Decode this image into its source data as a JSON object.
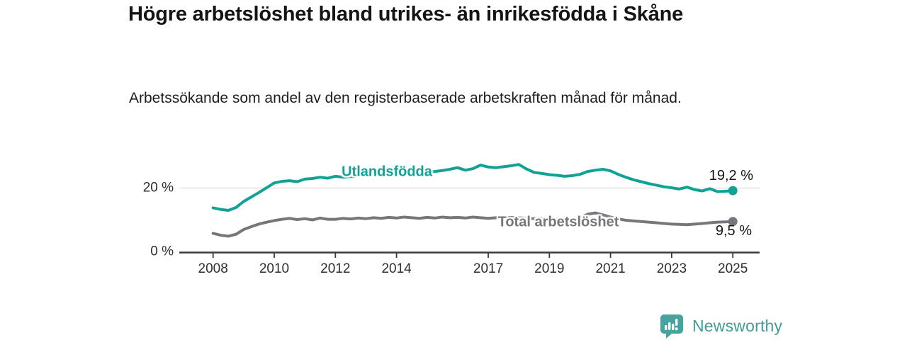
{
  "header": {
    "title": "Högre arbetslöshet bland utrikes- än inrikesfödda i Skåne",
    "subtitle": "Arbetssökande som andel av den registerbaserade arbetskraften månad för månad."
  },
  "chart_data": {
    "type": "line",
    "title": "Högre arbetslöshet bland utrikes- än inrikesfödda i Skåne",
    "xlabel": "",
    "ylabel": "Arbetssökande som andel av den registerbaserade arbetskraften (%)",
    "xlim": [
      2008,
      2025
    ],
    "ylim": [
      0,
      30
    ],
    "grid": "single horizontal gridline at 20 %",
    "legend_position": "inline labels on lines",
    "x_ticks": [
      2008,
      2010,
      2012,
      2014,
      2017,
      2019,
      2021,
      2023,
      2025
    ],
    "y_ticks": [
      {
        "value": 20,
        "label": "20 %"
      },
      {
        "value": 0,
        "label": "0 %"
      }
    ],
    "axis_color": "#3c3c3c",
    "gridline_color": "#e4e4e4",
    "x": [
      2008,
      2008.25,
      2008.5,
      2008.75,
      2009,
      2009.25,
      2009.5,
      2009.75,
      2010,
      2010.25,
      2010.5,
      2010.75,
      2011,
      2011.25,
      2011.5,
      2011.75,
      2012,
      2012.25,
      2012.5,
      2012.75,
      2013,
      2013.25,
      2013.5,
      2013.75,
      2014,
      2014.25,
      2014.5,
      2014.75,
      2015,
      2015.25,
      2015.5,
      2015.75,
      2016,
      2016.25,
      2016.5,
      2016.75,
      2017,
      2017.25,
      2017.5,
      2017.75,
      2018,
      2018.25,
      2018.5,
      2018.75,
      2019,
      2019.25,
      2019.5,
      2019.75,
      2020,
      2020.25,
      2020.5,
      2020.75,
      2021,
      2021.25,
      2021.5,
      2021.75,
      2022,
      2022.25,
      2022.5,
      2022.75,
      2023,
      2023.25,
      2023.5,
      2023.75,
      2024,
      2024.25,
      2024.5,
      2024.75,
      2025
    ],
    "series": [
      {
        "name": "Utlandsfödda",
        "color": "#10a294",
        "end_label": "19,2 %",
        "end_value": 19.2,
        "values": [
          13.8,
          13.3,
          13.0,
          13.9,
          15.8,
          17.2,
          18.6,
          20.1,
          21.6,
          22.1,
          22.3,
          22.0,
          22.8,
          23.0,
          23.4,
          23.1,
          23.7,
          23.4,
          23.6,
          23.8,
          24.0,
          24.2,
          24.1,
          24.3,
          24.5,
          24.7,
          24.6,
          24.9,
          25.1,
          25.2,
          25.5,
          25.9,
          26.4,
          25.6,
          26.1,
          27.2,
          26.6,
          26.4,
          26.7,
          27.0,
          27.4,
          26.0,
          24.9,
          24.6,
          24.2,
          24.0,
          23.7,
          23.9,
          24.3,
          25.2,
          25.6,
          25.9,
          25.4,
          24.3,
          23.4,
          22.6,
          22.0,
          21.4,
          20.9,
          20.4,
          20.1,
          19.7,
          20.3,
          19.5,
          19.1,
          19.8,
          18.9,
          19.0,
          19.2
        ]
      },
      {
        "name": "Total arbetslöshet",
        "color": "#77777b",
        "end_label": "9,5 %",
        "end_value": 9.5,
        "values": [
          5.8,
          5.2,
          4.9,
          5.5,
          7.0,
          7.9,
          8.7,
          9.3,
          9.8,
          10.2,
          10.5,
          10.1,
          10.4,
          10.0,
          10.6,
          10.2,
          10.2,
          10.5,
          10.3,
          10.6,
          10.4,
          10.7,
          10.5,
          10.8,
          10.6,
          10.9,
          10.7,
          10.5,
          10.8,
          10.6,
          10.9,
          10.7,
          10.8,
          10.6,
          10.9,
          10.7,
          10.5,
          10.7,
          10.6,
          10.8,
          10.7,
          10.5,
          10.4,
          10.5,
          10.4,
          10.3,
          10.2,
          10.3,
          10.6,
          11.8,
          12.2,
          11.6,
          10.9,
          10.3,
          9.9,
          9.7,
          9.5,
          9.3,
          9.1,
          8.9,
          8.7,
          8.6,
          8.5,
          8.7,
          8.9,
          9.1,
          9.3,
          9.4,
          9.5
        ]
      }
    ]
  },
  "footer": {
    "brand": "Newsworthy",
    "brand_color": "#3f9d99",
    "logo_color": "#47a39d",
    "logo_icon": "newsworthy-speech-bubble-bar-chart-exclamation"
  }
}
